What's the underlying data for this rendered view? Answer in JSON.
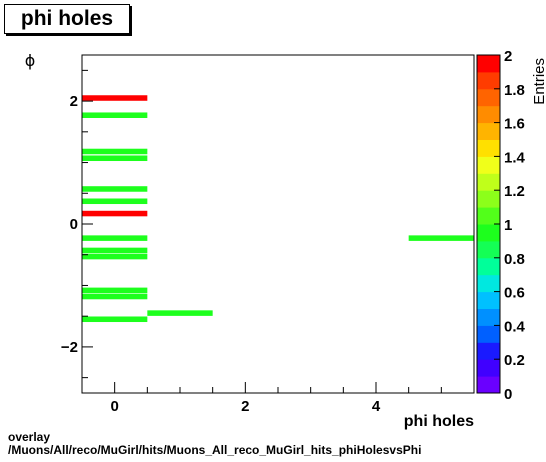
{
  "title": "phi holes",
  "footer": {
    "line1": "overlay",
    "line2": "/Muons/All/reco/MuGirl/hits/Muons_All_reco_MuGirl_hits_phiHolesvsPhi"
  },
  "chart_data": {
    "type": "heatmap",
    "xlabel": "phi holes",
    "ylabel": "ϕ",
    "zlabel": "Entries",
    "xlim": [
      -0.5,
      5.5
    ],
    "ylim": [
      -2.75,
      2.75
    ],
    "zlim": [
      0,
      2
    ],
    "x_ticks": [
      0,
      2,
      4
    ],
    "y_ticks": [
      -2,
      0,
      2
    ],
    "z_ticks": [
      0,
      0.2,
      0.4,
      0.6,
      0.8,
      1,
      1.2,
      1.4,
      1.6,
      1.8,
      2
    ],
    "cells": [
      {
        "x": 0,
        "y": 2.05,
        "value": 2
      },
      {
        "x": 0,
        "y": 1.77,
        "value": 1
      },
      {
        "x": 0,
        "y": 1.18,
        "value": 1
      },
      {
        "x": 0,
        "y": 1.07,
        "value": 1
      },
      {
        "x": 0,
        "y": 0.57,
        "value": 1
      },
      {
        "x": 0,
        "y": 0.37,
        "value": 1
      },
      {
        "x": 0,
        "y": 0.17,
        "value": 2
      },
      {
        "x": 0,
        "y": -0.23,
        "value": 1
      },
      {
        "x": 0,
        "y": -0.43,
        "value": 1
      },
      {
        "x": 0,
        "y": -0.53,
        "value": 1
      },
      {
        "x": 0,
        "y": -1.08,
        "value": 1
      },
      {
        "x": 0,
        "y": -1.18,
        "value": 1
      },
      {
        "x": 0,
        "y": -1.55,
        "value": 1
      },
      {
        "x": 1,
        "y": -1.45,
        "value": 1
      },
      {
        "x": 5,
        "y": -0.23,
        "value": 1
      }
    ]
  }
}
